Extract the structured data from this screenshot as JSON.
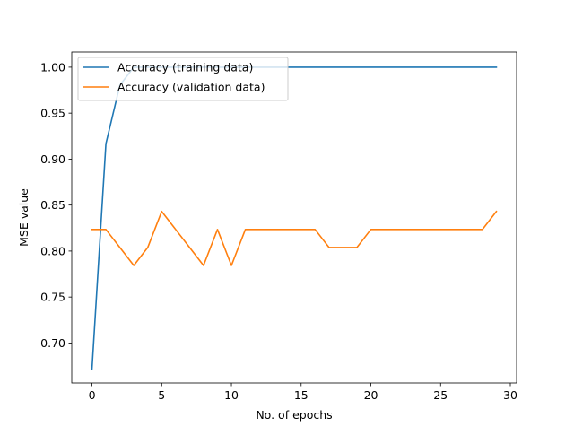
{
  "chart_data": {
    "type": "line",
    "title": "",
    "xlabel": "No. of epochs",
    "ylabel": "MSE value",
    "xlim": [
      -1.45,
      30.45
    ],
    "ylim": [
      0.6565,
      1.0165
    ],
    "xticks": [
      0,
      5,
      10,
      15,
      20,
      25,
      30
    ],
    "xtick_labels": [
      "0",
      "5",
      "10",
      "15",
      "20",
      "25",
      "30"
    ],
    "yticks": [
      0.7,
      0.75,
      0.8,
      0.85,
      0.9,
      0.95,
      1.0
    ],
    "ytick_labels": [
      "0.70",
      "0.75",
      "0.80",
      "0.85",
      "0.90",
      "0.95",
      "1.00"
    ],
    "grid": false,
    "legend_position": "top-left",
    "x": [
      0,
      1,
      2,
      3,
      4,
      5,
      6,
      7,
      8,
      9,
      10,
      11,
      12,
      13,
      14,
      15,
      16,
      17,
      18,
      19,
      20,
      21,
      22,
      23,
      24,
      25,
      26,
      27,
      28,
      29
    ],
    "series": [
      {
        "name": "Accuracy (training data)",
        "color": "#1f77b4",
        "values": [
          0.6716,
          0.9167,
          0.9804,
          1.0,
          1.0,
          1.0,
          1.0,
          1.0,
          1.0,
          1.0,
          1.0,
          1.0,
          1.0,
          1.0,
          1.0,
          1.0,
          1.0,
          1.0,
          1.0,
          1.0,
          1.0,
          1.0,
          1.0,
          1.0,
          1.0,
          1.0,
          1.0,
          1.0,
          1.0,
          1.0
        ]
      },
      {
        "name": "Accuracy (validation data)",
        "color": "#ff7f0e",
        "values": [
          0.8235,
          0.8235,
          0.8039,
          0.7843,
          0.8039,
          0.8431,
          0.8235,
          0.8039,
          0.7843,
          0.8235,
          0.7843,
          0.8235,
          0.8235,
          0.8235,
          0.8235,
          0.8235,
          0.8235,
          0.8039,
          0.8039,
          0.8039,
          0.8235,
          0.8235,
          0.8235,
          0.8235,
          0.8235,
          0.8235,
          0.8235,
          0.8235,
          0.8235,
          0.8431
        ]
      }
    ]
  }
}
